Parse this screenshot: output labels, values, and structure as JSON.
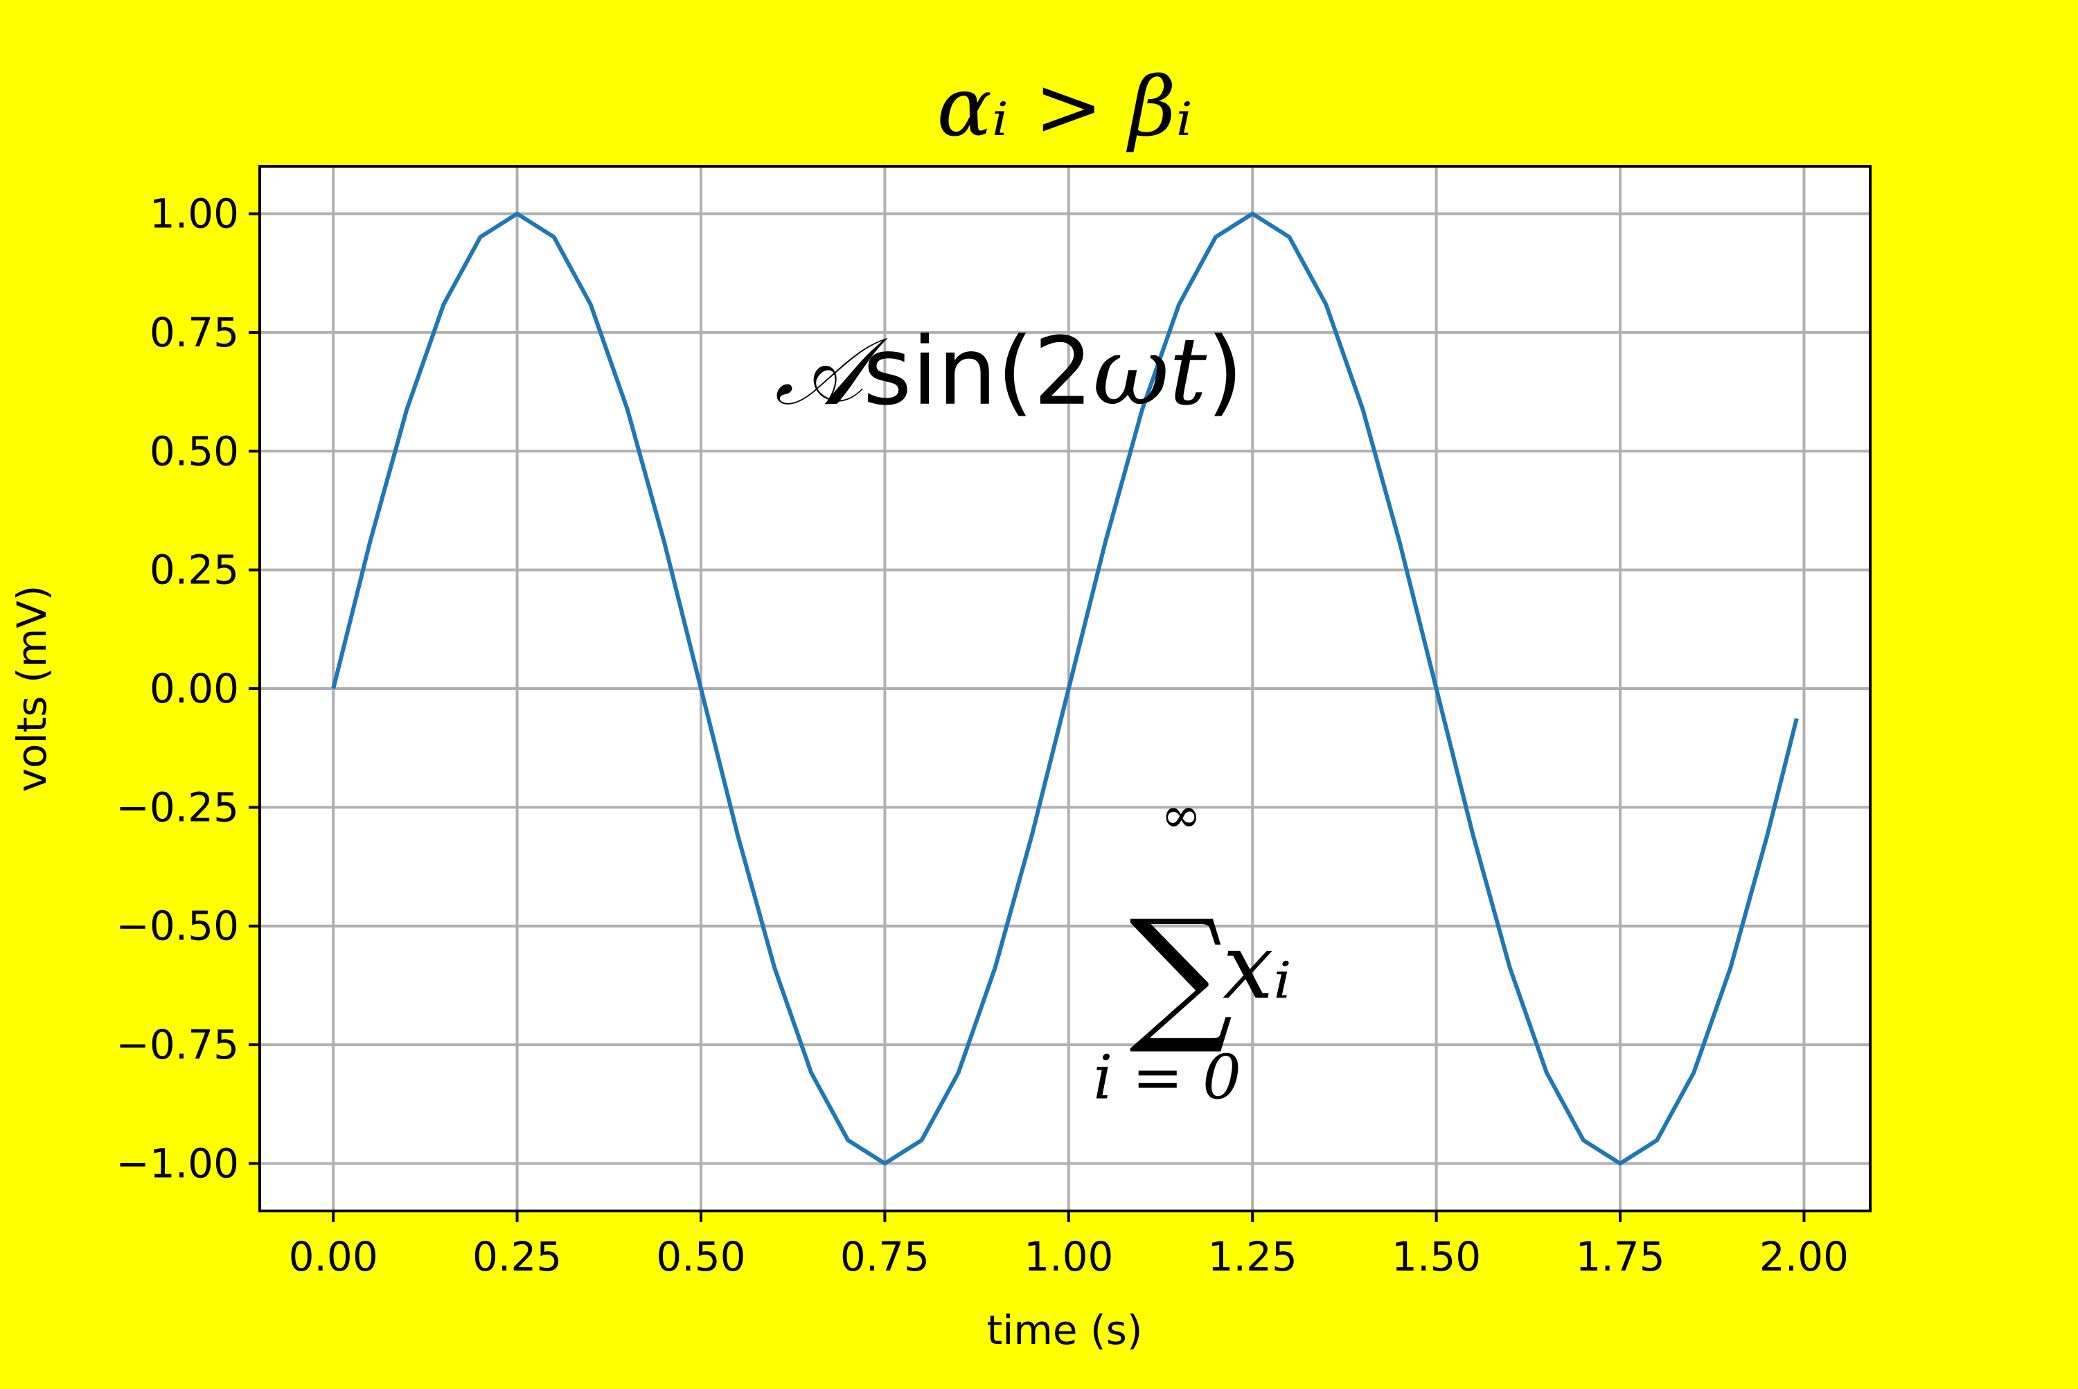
{
  "colors": {
    "figure_background": "#ffff00",
    "axes_background": "#ffffff",
    "series": "#1f77b4",
    "grid": "#b0b0b0",
    "frame": "#000000"
  },
  "chart_data": {
    "type": "line",
    "title": "αᵢ > βᵢ",
    "xlabel": "time (s)",
    "ylabel": "volts (mV)",
    "xlim": [
      -0.1,
      2.09
    ],
    "ylim": [
      -1.1,
      1.1
    ],
    "grid": true,
    "legend": "none",
    "x_ticks": [
      0.0,
      0.25,
      0.5,
      0.75,
      1.0,
      1.25,
      1.5,
      1.75,
      2.0
    ],
    "x_tick_labels": [
      "0.00",
      "0.25",
      "0.50",
      "0.75",
      "1.00",
      "1.25",
      "1.50",
      "1.75",
      "2.00"
    ],
    "y_ticks": [
      1.0,
      0.75,
      0.5,
      0.25,
      0.0,
      -0.25,
      -0.5,
      -0.75,
      -1.0
    ],
    "y_tick_labels": [
      "1.00",
      "0.75",
      "0.50",
      "0.25",
      "0.00",
      "−0.25",
      "−0.50",
      "−0.75",
      "−1.00"
    ],
    "series": [
      {
        "x": [
          0.0,
          0.05,
          0.1,
          0.15,
          0.2,
          0.25,
          0.3,
          0.35,
          0.4,
          0.45,
          0.5,
          0.55,
          0.6,
          0.65,
          0.7,
          0.75,
          0.8,
          0.85,
          0.9,
          0.95,
          1.0,
          1.05,
          1.1,
          1.15,
          1.2,
          1.25,
          1.3,
          1.35,
          1.4,
          1.45,
          1.5,
          1.55,
          1.6,
          1.65,
          1.7,
          1.75,
          1.8,
          1.85,
          1.9,
          1.95,
          1.99
        ],
        "y": [
          0.0,
          0.309,
          0.588,
          0.809,
          0.951,
          1.0,
          0.951,
          0.809,
          0.588,
          0.309,
          0.0,
          -0.309,
          -0.588,
          -0.809,
          -0.951,
          -1.0,
          -0.951,
          -0.809,
          -0.588,
          -0.309,
          0.0,
          0.309,
          0.588,
          0.809,
          0.951,
          1.0,
          0.951,
          0.809,
          0.588,
          0.309,
          0.0,
          -0.309,
          -0.588,
          -0.809,
          -0.951,
          -1.0,
          -0.951,
          -0.809,
          -0.588,
          -0.309,
          -0.063
        ]
      }
    ],
    "annotations": [
      {
        "text_script": "𝒜",
        "text_main": "sin(2",
        "text_omega": "ωt",
        "text_close": ")",
        "x": 0.6,
        "y": 0.6
      },
      {
        "sum_symbol": "∑",
        "upper": "∞",
        "lower": "i = 0",
        "term": "xᵢ",
        "x": 1.2,
        "y": -0.6
      }
    ]
  }
}
